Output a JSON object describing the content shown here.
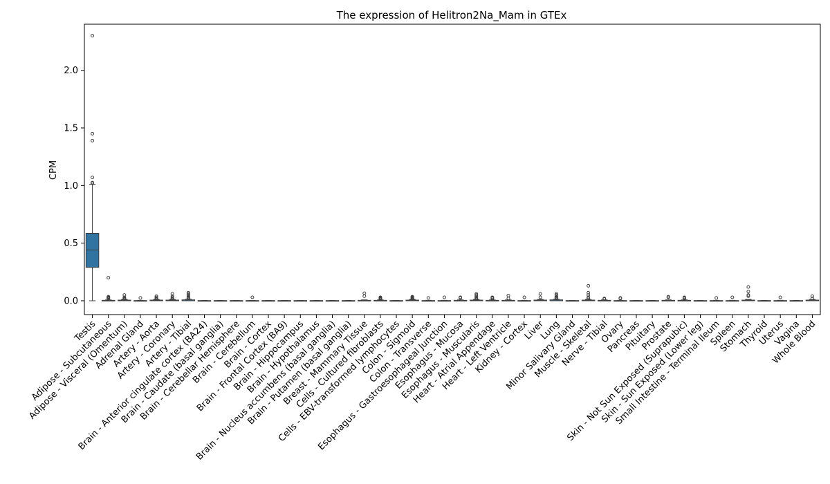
{
  "chart_data": {
    "type": "box",
    "title": "The expression of Helitron2Na_Mam in GTEx",
    "xlabel": "",
    "ylabel": "CPM",
    "ylim": [
      -0.12,
      2.4
    ],
    "yticks": [
      0.0,
      0.5,
      1.0,
      1.5,
      2.0
    ],
    "ytick_labels": [
      "0.0",
      "0.5",
      "1.0",
      "1.5",
      "2.0"
    ],
    "box_color": "#3274a1",
    "categories": [
      "Testis",
      "Adipose - Subcutaneous",
      "Adipose - Visceral (Omentum)",
      "Adrenal Gland",
      "Artery - Aorta",
      "Artery - Coronary",
      "Artery - Tibial",
      "Brain - Anterior cingulate cortex (BA24)",
      "Brain - Caudate (basal ganglia)",
      "Brain - Cerebellar Hemisphere",
      "Brain - Cerebellum",
      "Brain - Cortex",
      "Brain - Frontal Cortex (BA9)",
      "Brain - Hippocampus",
      "Brain - Hypothalamus",
      "Brain - Nucleus accumbens (basal ganglia)",
      "Brain - Putamen (basal ganglia)",
      "Breast - Mammary Tissue",
      "Cells - Cultured fibroblasts",
      "Cells - EBV-transformed lymphocytes",
      "Colon - Sigmoid",
      "Colon - Transverse",
      "Esophagus - Gastroesophageal Junction",
      "Esophagus - Mucosa",
      "Esophagus - Muscularis",
      "Heart - Atrial Appendage",
      "Heart - Left Ventricle",
      "Kidney - Cortex",
      "Liver",
      "Lung",
      "Minor Salivary Gland",
      "Muscle - Skeletal",
      "Nerve - Tibial",
      "Ovary",
      "Pancreas",
      "Pituitary",
      "Prostate",
      "Skin - Not Sun Exposed (Suprapubic)",
      "Skin - Sun Exposed (Lower leg)",
      "Small Intestine - Terminal Ileum",
      "Spleen",
      "Stomach",
      "Thyroid",
      "Uterus",
      "Vagina",
      "Whole Blood"
    ],
    "boxes": [
      {
        "q1": 0.29,
        "median": 0.44,
        "q3": 0.585,
        "whislo": 0.0,
        "whishi": 1.01,
        "fliers": [
          1.02,
          1.025,
          1.07,
          1.39,
          1.45,
          2.3
        ]
      },
      {
        "q1": 0,
        "median": 0,
        "q3": 0.004,
        "whislo": 0,
        "whishi": 0.008,
        "fliers": [
          0.02,
          0.025,
          0.03,
          0.035,
          0.2
        ]
      },
      {
        "q1": 0,
        "median": 0,
        "q3": 0.006,
        "whislo": 0,
        "whishi": 0.012,
        "fliers": [
          0.015,
          0.02,
          0.03,
          0.05
        ]
      },
      {
        "q1": 0,
        "median": 0,
        "q3": 0.002,
        "whislo": 0,
        "whishi": 0.004,
        "fliers": [
          0.025
        ]
      },
      {
        "q1": 0,
        "median": 0,
        "q3": 0.006,
        "whislo": 0,
        "whishi": 0.012,
        "fliers": [
          0.015,
          0.02,
          0.03,
          0.04
        ]
      },
      {
        "q1": 0,
        "median": 0,
        "q3": 0.006,
        "whislo": 0,
        "whishi": 0.012,
        "fliers": [
          0.015,
          0.02,
          0.03,
          0.04,
          0.06
        ]
      },
      {
        "q1": 0,
        "median": 0,
        "q3": 0.008,
        "whislo": 0,
        "whishi": 0.015,
        "fliers": [
          0.02,
          0.025,
          0.03,
          0.04,
          0.05,
          0.06,
          0.07
        ]
      },
      {
        "q1": 0,
        "median": 0,
        "q3": 0.002,
        "whislo": 0,
        "whishi": 0.003,
        "fliers": []
      },
      {
        "q1": 0,
        "median": 0,
        "q3": 0.002,
        "whislo": 0,
        "whishi": 0.003,
        "fliers": []
      },
      {
        "q1": 0,
        "median": 0,
        "q3": 0.002,
        "whislo": 0,
        "whishi": 0.003,
        "fliers": []
      },
      {
        "q1": 0,
        "median": 0,
        "q3": 0.002,
        "whislo": 0,
        "whishi": 0.003,
        "fliers": [
          0.03
        ]
      },
      {
        "q1": 0,
        "median": 0,
        "q3": 0.002,
        "whislo": 0,
        "whishi": 0.003,
        "fliers": []
      },
      {
        "q1": 0,
        "median": 0,
        "q3": 0.002,
        "whislo": 0,
        "whishi": 0.003,
        "fliers": []
      },
      {
        "q1": 0,
        "median": 0,
        "q3": 0.002,
        "whislo": 0,
        "whishi": 0.003,
        "fliers": []
      },
      {
        "q1": 0,
        "median": 0,
        "q3": 0.002,
        "whislo": 0,
        "whishi": 0.003,
        "fliers": []
      },
      {
        "q1": 0,
        "median": 0,
        "q3": 0.002,
        "whislo": 0,
        "whishi": 0.003,
        "fliers": []
      },
      {
        "q1": 0,
        "median": 0,
        "q3": 0.002,
        "whislo": 0,
        "whishi": 0.003,
        "fliers": []
      },
      {
        "q1": 0,
        "median": 0,
        "q3": 0.004,
        "whislo": 0,
        "whishi": 0.008,
        "fliers": [
          0.04,
          0.065
        ]
      },
      {
        "q1": 0,
        "median": 0,
        "q3": 0.004,
        "whislo": 0,
        "whishi": 0.008,
        "fliers": [
          0.015,
          0.02,
          0.025,
          0.03
        ]
      },
      {
        "q1": 0,
        "median": 0,
        "q3": 0.002,
        "whislo": 0,
        "whishi": 0.003,
        "fliers": []
      },
      {
        "q1": 0,
        "median": 0,
        "q3": 0.006,
        "whislo": 0,
        "whishi": 0.012,
        "fliers": [
          0.015,
          0.02,
          0.025,
          0.03,
          0.035
        ]
      },
      {
        "q1": 0,
        "median": 0,
        "q3": 0.002,
        "whislo": 0,
        "whishi": 0.004,
        "fliers": [
          0.025
        ]
      },
      {
        "q1": 0,
        "median": 0,
        "q3": 0.002,
        "whislo": 0,
        "whishi": 0.004,
        "fliers": [
          0.03
        ]
      },
      {
        "q1": 0,
        "median": 0,
        "q3": 0.004,
        "whislo": 0,
        "whishi": 0.008,
        "fliers": [
          0.025,
          0.03
        ]
      },
      {
        "q1": 0,
        "median": 0,
        "q3": 0.006,
        "whislo": 0,
        "whishi": 0.012,
        "fliers": [
          0.015,
          0.02,
          0.03,
          0.04,
          0.05,
          0.06
        ]
      },
      {
        "q1": 0,
        "median": 0,
        "q3": 0.004,
        "whislo": 0,
        "whishi": 0.008,
        "fliers": [
          0.02,
          0.025,
          0.03
        ]
      },
      {
        "q1": 0,
        "median": 0,
        "q3": 0.004,
        "whislo": 0,
        "whishi": 0.008,
        "fliers": [
          0.02,
          0.045
        ]
      },
      {
        "q1": 0,
        "median": 0,
        "q3": 0.002,
        "whislo": 0,
        "whishi": 0.004,
        "fliers": [
          0.03
        ]
      },
      {
        "q1": 0,
        "median": 0,
        "q3": 0.006,
        "whislo": 0,
        "whishi": 0.012,
        "fliers": [
          0.03,
          0.06
        ]
      },
      {
        "q1": 0,
        "median": 0,
        "q3": 0.008,
        "whislo": 0,
        "whishi": 0.015,
        "fliers": [
          0.02,
          0.025,
          0.03,
          0.04,
          0.05,
          0.06
        ]
      },
      {
        "q1": 0,
        "median": 0,
        "q3": 0.002,
        "whislo": 0,
        "whishi": 0.003,
        "fliers": []
      },
      {
        "q1": 0,
        "median": 0,
        "q3": 0.006,
        "whislo": 0,
        "whishi": 0.012,
        "fliers": [
          0.02,
          0.03,
          0.05,
          0.07,
          0.13
        ]
      },
      {
        "q1": 0,
        "median": 0,
        "q3": 0.004,
        "whislo": 0,
        "whishi": 0.008,
        "fliers": [
          0.015,
          0.02
        ]
      },
      {
        "q1": 0,
        "median": 0,
        "q3": 0.002,
        "whislo": 0,
        "whishi": 0.004,
        "fliers": [
          0.02,
          0.025
        ]
      },
      {
        "q1": 0,
        "median": 0,
        "q3": 0.002,
        "whislo": 0,
        "whishi": 0.003,
        "fliers": []
      },
      {
        "q1": 0,
        "median": 0,
        "q3": 0.002,
        "whislo": 0,
        "whishi": 0.003,
        "fliers": []
      },
      {
        "q1": 0,
        "median": 0,
        "q3": 0.004,
        "whislo": 0,
        "whishi": 0.008,
        "fliers": [
          0.03,
          0.035
        ]
      },
      {
        "q1": 0,
        "median": 0,
        "q3": 0.004,
        "whislo": 0,
        "whishi": 0.008,
        "fliers": [
          0.02,
          0.025,
          0.03
        ]
      },
      {
        "q1": 0,
        "median": 0,
        "q3": 0.002,
        "whislo": 0,
        "whishi": 0.003,
        "fliers": []
      },
      {
        "q1": 0,
        "median": 0,
        "q3": 0.002,
        "whislo": 0,
        "whishi": 0.004,
        "fliers": [
          0.025
        ]
      },
      {
        "q1": 0,
        "median": 0,
        "q3": 0.002,
        "whislo": 0,
        "whishi": 0.004,
        "fliers": [
          0.03
        ]
      },
      {
        "q1": 0,
        "median": 0,
        "q3": 0.006,
        "whislo": 0,
        "whishi": 0.012,
        "fliers": [
          0.04,
          0.05,
          0.08,
          0.12
        ]
      },
      {
        "q1": 0,
        "median": 0,
        "q3": 0.002,
        "whislo": 0,
        "whishi": 0.003,
        "fliers": []
      },
      {
        "q1": 0,
        "median": 0,
        "q3": 0.002,
        "whislo": 0,
        "whishi": 0.004,
        "fliers": [
          0.03
        ]
      },
      {
        "q1": 0,
        "median": 0,
        "q3": 0.002,
        "whislo": 0,
        "whishi": 0.003,
        "fliers": []
      },
      {
        "q1": 0,
        "median": 0,
        "q3": 0.006,
        "whislo": 0,
        "whishi": 0.012,
        "fliers": [
          0.02,
          0.04
        ]
      }
    ]
  }
}
